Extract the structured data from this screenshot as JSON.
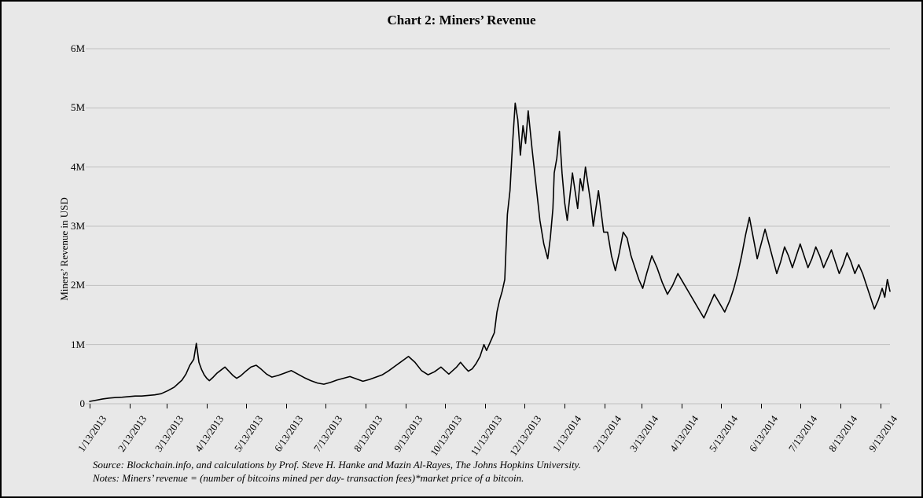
{
  "chart": {
    "type": "line",
    "title": "Chart 2: Miners’ Revenue",
    "title_fontsize": 17,
    "title_fontweight": "bold",
    "ylabel": "Miners’ Revenue in USD",
    "label_fontsize": 13,
    "background_color": "#e8e8e8",
    "border_color": "#000000",
    "grid_color": "#bfbfbf",
    "line_color": "#000000",
    "line_width": 1.6,
    "ylim": [
      0,
      6000000
    ],
    "ytick_step": 1000000,
    "ytick_labels": [
      "0",
      "1M",
      "2M",
      "3M",
      "4M",
      "5M",
      "6M"
    ],
    "xlim": [
      0,
      243
    ],
    "xticks": {
      "positions": [
        0,
        31,
        59,
        90,
        120,
        151,
        181,
        212,
        243,
        273,
        304,
        334,
        365,
        396,
        424,
        455,
        485,
        516,
        546,
        577,
        608
      ],
      "labels": [
        "1/13/2013",
        "2/13/2013",
        "3/13/2013",
        "4/13/2013",
        "5/13/2013",
        "6/13/2013",
        "7/13/2013",
        "8/13/2013",
        "9/13/2013",
        "10/13/2013",
        "11/13/2013",
        "12/13/2013",
        "1/13/2014",
        "2/13/2014",
        "3/13/2014",
        "4/13/2014",
        "5/13/2014",
        "6/13/2014",
        "7/13/2014",
        "8/13/2014",
        "9/13/2014"
      ],
      "xrange_days": 615
    },
    "series": {
      "name": "miners_revenue_usd",
      "x_days_from_start": [
        0,
        5,
        10,
        15,
        20,
        25,
        30,
        35,
        40,
        45,
        50,
        55,
        60,
        65,
        68,
        71,
        74,
        77,
        80,
        82,
        84,
        86,
        88,
        90,
        92,
        95,
        98,
        101,
        104,
        107,
        110,
        113,
        116,
        120,
        124,
        128,
        132,
        136,
        140,
        145,
        150,
        155,
        160,
        165,
        170,
        175,
        180,
        185,
        190,
        195,
        200,
        205,
        210,
        215,
        220,
        225,
        230,
        235,
        240,
        245,
        250,
        255,
        260,
        265,
        270,
        273,
        276,
        279,
        282,
        285,
        288,
        291,
        294,
        297,
        300,
        303,
        305,
        307,
        309,
        311,
        313,
        315,
        317,
        319,
        321,
        323,
        325,
        327,
        329,
        331,
        333,
        335,
        337,
        340,
        343,
        346,
        349,
        352,
        354,
        356,
        357,
        359,
        361,
        363,
        365,
        367,
        369,
        371,
        373,
        375,
        377,
        379,
        381,
        383,
        385,
        387,
        389,
        391,
        393,
        395,
        398,
        401,
        404,
        407,
        410,
        413,
        416,
        419,
        422,
        425,
        428,
        432,
        436,
        440,
        444,
        448,
        452,
        456,
        460,
        464,
        468,
        472,
        476,
        480,
        484,
        488,
        492,
        495,
        498,
        501,
        504,
        507,
        510,
        513,
        516,
        519,
        522,
        525,
        528,
        531,
        534,
        537,
        540,
        543,
        546,
        549,
        552,
        555,
        558,
        561,
        564,
        567,
        570,
        573,
        576,
        579,
        582,
        585,
        588,
        591,
        594,
        597,
        600,
        603,
        606,
        609,
        611,
        613,
        615
      ],
      "y_values": [
        40000,
        60000,
        80000,
        95000,
        105000,
        110000,
        120000,
        130000,
        130000,
        140000,
        150000,
        170000,
        220000,
        280000,
        340000,
        400000,
        500000,
        650000,
        750000,
        1020000,
        700000,
        580000,
        490000,
        430000,
        390000,
        450000,
        520000,
        570000,
        620000,
        550000,
        480000,
        430000,
        470000,
        550000,
        620000,
        650000,
        580000,
        500000,
        450000,
        480000,
        520000,
        560000,
        500000,
        440000,
        390000,
        350000,
        330000,
        360000,
        400000,
        430000,
        460000,
        420000,
        380000,
        410000,
        450000,
        490000,
        560000,
        640000,
        720000,
        800000,
        700000,
        560000,
        490000,
        540000,
        620000,
        560000,
        500000,
        560000,
        620000,
        700000,
        620000,
        550000,
        590000,
        680000,
        800000,
        1000000,
        900000,
        1000000,
        1100000,
        1200000,
        1550000,
        1750000,
        1900000,
        2100000,
        3200000,
        3600000,
        4400000,
        5080000,
        4800000,
        4200000,
        4700000,
        4400000,
        4950000,
        4300000,
        3700000,
        3100000,
        2700000,
        2450000,
        2800000,
        3300000,
        3900000,
        4150000,
        4600000,
        3900000,
        3400000,
        3100000,
        3500000,
        3900000,
        3600000,
        3300000,
        3800000,
        3600000,
        4000000,
        3700000,
        3400000,
        3000000,
        3300000,
        3600000,
        3250000,
        2900000,
        2900000,
        2500000,
        2250000,
        2550000,
        2900000,
        2800000,
        2500000,
        2300000,
        2100000,
        1950000,
        2200000,
        2500000,
        2300000,
        2050000,
        1850000,
        2000000,
        2200000,
        2050000,
        1900000,
        1750000,
        1600000,
        1450000,
        1650000,
        1850000,
        1700000,
        1550000,
        1750000,
        1950000,
        2200000,
        2500000,
        2850000,
        3150000,
        2800000,
        2450000,
        2700000,
        2950000,
        2700000,
        2450000,
        2200000,
        2400000,
        2650000,
        2500000,
        2300000,
        2500000,
        2700000,
        2500000,
        2300000,
        2450000,
        2650000,
        2500000,
        2300000,
        2450000,
        2600000,
        2400000,
        2200000,
        2350000,
        2550000,
        2400000,
        2200000,
        2350000,
        2200000,
        2000000,
        1800000,
        1600000,
        1750000,
        1950000,
        1800000,
        2100000,
        1900000
      ]
    },
    "notes": [
      "Source: Blockchain.info, and calculations by Prof. Steve H. Hanke and Mazin Al-Rayes, The Johns Hopkins University.",
      "Notes: Miners’ revenue = (number of bitcoins mined per day- transaction fees)*market price of a bitcoin."
    ],
    "notes_fontsize": 13
  }
}
